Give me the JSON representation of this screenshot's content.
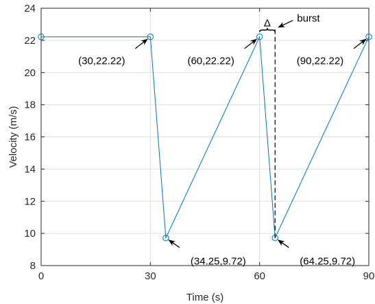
{
  "chart_data": {
    "type": "line",
    "xlabel": "Time (s)",
    "ylabel": "Velocity (m/s)",
    "xlim": [
      0,
      90
    ],
    "ylim": [
      8,
      24
    ],
    "x_ticks": [
      0,
      30,
      60,
      90
    ],
    "y_ticks": [
      8,
      10,
      12,
      14,
      16,
      18,
      20,
      22,
      24
    ],
    "grid": true,
    "series": [
      {
        "color": "#0072BD",
        "marker": "circle",
        "points": [
          {
            "x": 0,
            "y": 22.22
          },
          {
            "x": 30,
            "y": 22.22
          },
          {
            "x": 34.25,
            "y": 9.72
          },
          {
            "x": 60,
            "y": 22.22
          },
          {
            "x": 64.25,
            "y": 9.72
          },
          {
            "x": 90,
            "y": 22.22
          }
        ]
      }
    ],
    "annotations": [
      {
        "text": "(30,22.22)",
        "x": 30,
        "y": 22.22
      },
      {
        "text": "(60,22.22)",
        "x": 60,
        "y": 22.22
      },
      {
        "text": "(90,22.22)",
        "x": 90,
        "y": 22.22
      },
      {
        "text": "(34.25,9.72)",
        "x": 34.25,
        "y": 9.72
      },
      {
        "text": "(64.25,9.72)",
        "x": 64.25,
        "y": 9.72
      }
    ],
    "burst": {
      "delta_symbol": "Δ",
      "label": "burst",
      "from_x": 60,
      "to_x": 64.25
    }
  }
}
